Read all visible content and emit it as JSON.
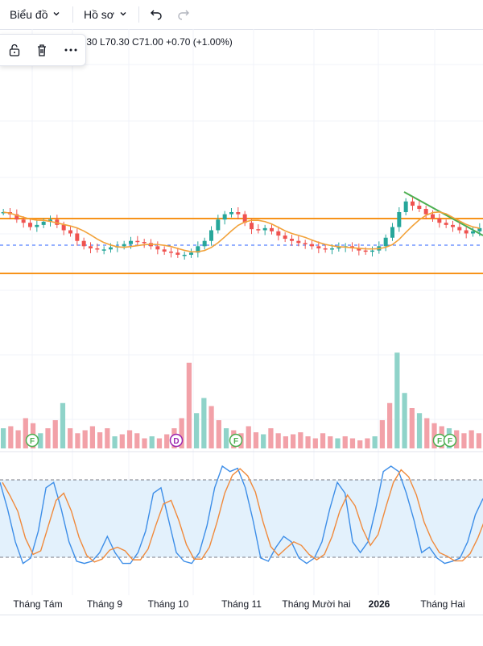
{
  "toolbar": {
    "chart_menu": "Biểu đồ",
    "profile_menu": "Hồ sơ"
  },
  "legend": {
    "ohlc": ".30  L70.30  C71.00  +0.70 (+1.00%)"
  },
  "axis": {
    "labels": [
      "Tháng Tám",
      "Tháng 9",
      "Tháng 10",
      "Tháng 11",
      "Tháng Mười hai",
      "2026",
      "Tháng Hai"
    ]
  },
  "markers": [
    "F",
    "D",
    "F",
    "F",
    "F"
  ],
  "colors": {
    "up": "#26a69a",
    "down": "#ef5350",
    "vol_up": "#8fd3c9",
    "vol_down": "#f2a1a8",
    "support_resistance": "#f7931a",
    "ma": "#f2a23a",
    "trendline": "#4caf50",
    "k_line": "#3d8ee8",
    "d_line": "#f08a3c",
    "stoch_band": "#e3f1fc",
    "marker_f": "#4caf50",
    "marker_d": "#9c27b0"
  },
  "chart_data": {
    "type": "candlestick",
    "ohlc_last": {
      "low": 70.3,
      "close": 71.0,
      "change": 0.7,
      "change_pct": 1.0
    },
    "close_series_relative": [
      0.62,
      0.6,
      0.55,
      0.52,
      0.48,
      0.5,
      0.53,
      0.55,
      0.5,
      0.45,
      0.42,
      0.35,
      0.3,
      0.28,
      0.27,
      0.27,
      0.29,
      0.3,
      0.32,
      0.35,
      0.34,
      0.33,
      0.3,
      0.27,
      0.25,
      0.24,
      0.22,
      0.22,
      0.24,
      0.3,
      0.35,
      0.45,
      0.55,
      0.6,
      0.62,
      0.6,
      0.52,
      0.46,
      0.45,
      0.47,
      0.44,
      0.4,
      0.37,
      0.35,
      0.33,
      0.32,
      0.3,
      0.28,
      0.27,
      0.28,
      0.29,
      0.3,
      0.28,
      0.26,
      0.25,
      0.26,
      0.3,
      0.38,
      0.48,
      0.62,
      0.72,
      0.68,
      0.65,
      0.6,
      0.56,
      0.52,
      0.5,
      0.48,
      0.45,
      0.42,
      0.44,
      0.47
    ],
    "volume_relative": [
      0.2,
      0.22,
      0.18,
      0.3,
      0.25,
      0.15,
      0.2,
      0.28,
      0.45,
      0.2,
      0.15,
      0.18,
      0.22,
      0.16,
      0.2,
      0.12,
      0.14,
      0.18,
      0.15,
      0.1,
      0.12,
      0.1,
      0.14,
      0.2,
      0.3,
      0.85,
      0.35,
      0.5,
      0.42,
      0.28,
      0.2,
      0.18,
      0.15,
      0.22,
      0.16,
      0.14,
      0.2,
      0.15,
      0.12,
      0.14,
      0.16,
      0.12,
      0.1,
      0.15,
      0.12,
      0.1,
      0.12,
      0.1,
      0.08,
      0.1,
      0.12,
      0.28,
      0.45,
      0.95,
      0.55,
      0.4,
      0.35,
      0.3,
      0.25,
      0.22,
      0.2,
      0.18,
      0.15,
      0.18,
      0.15
    ],
    "stoch_k": [
      0.85,
      0.6,
      0.3,
      0.1,
      0.15,
      0.4,
      0.8,
      0.85,
      0.6,
      0.3,
      0.12,
      0.1,
      0.12,
      0.2,
      0.35,
      0.2,
      0.1,
      0.1,
      0.2,
      0.4,
      0.75,
      0.8,
      0.5,
      0.2,
      0.12,
      0.1,
      0.2,
      0.45,
      0.8,
      1.0,
      0.95,
      0.98,
      0.8,
      0.5,
      0.15,
      0.12,
      0.25,
      0.35,
      0.3,
      0.15,
      0.1,
      0.15,
      0.3,
      0.6,
      0.85,
      0.75,
      0.3,
      0.2,
      0.3,
      0.6,
      0.95,
      1.0,
      0.95,
      0.75,
      0.5,
      0.2,
      0.25,
      0.15,
      0.1,
      0.12,
      0.15,
      0.3,
      0.55,
      0.7
    ],
    "stoch_upper": 80,
    "stoch_lower": 20
  }
}
